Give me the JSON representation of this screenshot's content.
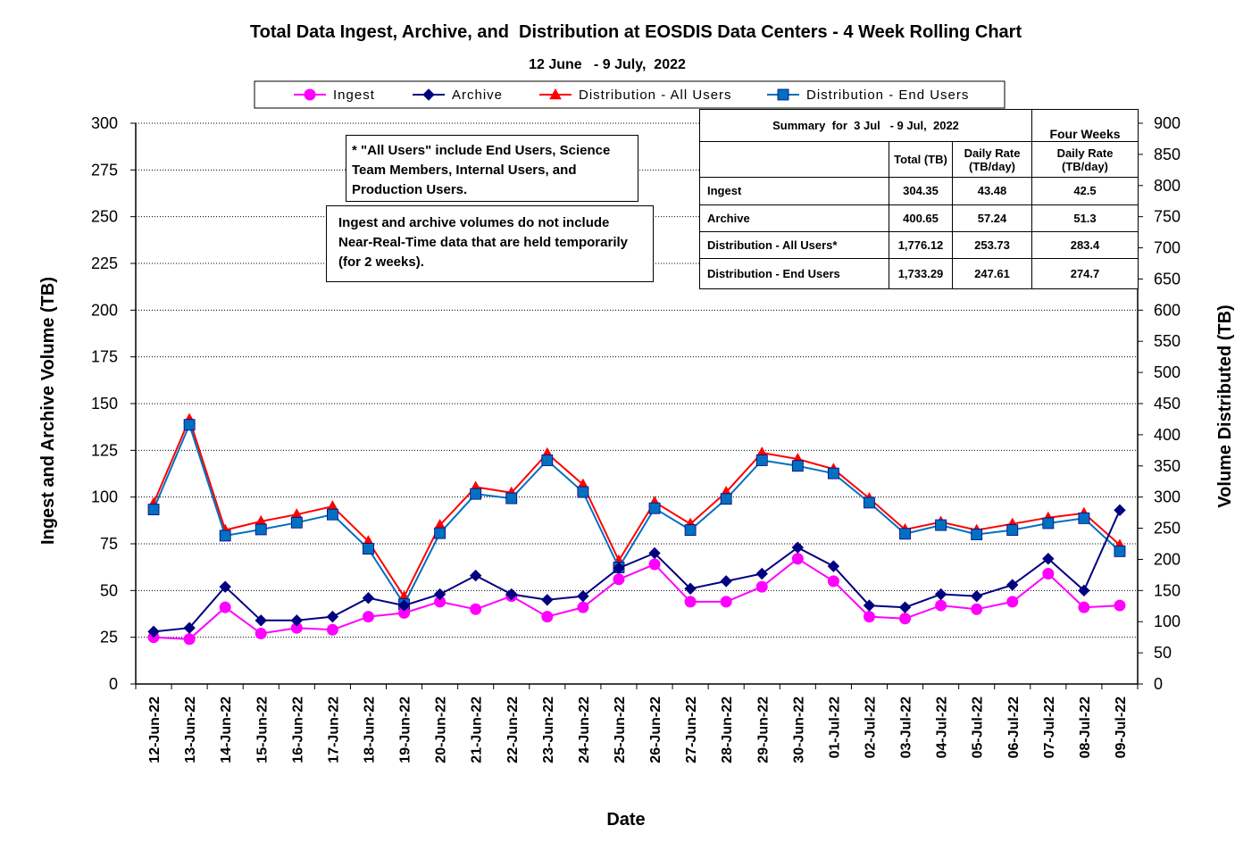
{
  "title": "Total Data Ingest, Archive, and  Distribution at EOSDIS Data Centers - 4 Week Rolling Chart",
  "subtitle": "12 June   - 9 July,  2022",
  "notes": {
    "all_users": "* \"All Users\" include End Users, Science Team Members,  Internal Users, and Production Users.",
    "nrt": "Ingest and archive volumes do not include Near-Real-Time data that are held temporarily (for 2 weeks)."
  },
  "summary_table": {
    "title": "Summary  for  3 Jul   - 9 Jul,  2022",
    "four_weeks": "Four Weeks",
    "col_total": "Total (TB)",
    "col_daily": "Daily Rate (TB/day)",
    "col_daily_4w": "Daily Rate (TB/day)",
    "rows": [
      {
        "label": "Ingest",
        "total": "304.35",
        "daily": "43.48",
        "four_week": "42.5"
      },
      {
        "label": "Archive",
        "total": "400.65",
        "daily": "57.24",
        "four_week": "51.3"
      },
      {
        "label": "Distribution - All Users*",
        "total": "1,776.12",
        "daily": "253.73",
        "four_week": "283.4"
      },
      {
        "label": "Distribution - End Users",
        "total": "1,733.29",
        "daily": "247.61",
        "four_week": "274.7"
      }
    ]
  },
  "chart_data": {
    "type": "line",
    "xlabel": "Date",
    "ylabel": "Ingest and Archive Volume (TB)",
    "y2label": "Volume Distributed (TB)",
    "ylim": [
      0,
      300
    ],
    "y2lim": [
      0,
      900
    ],
    "yticks": [
      0,
      25,
      50,
      75,
      100,
      125,
      150,
      175,
      200,
      225,
      250,
      275,
      300
    ],
    "y2ticks": [
      0,
      50,
      100,
      150,
      200,
      250,
      300,
      350,
      400,
      450,
      500,
      550,
      600,
      650,
      700,
      750,
      800,
      850,
      900
    ],
    "grid": "horizontal dotted",
    "legend_position": "top",
    "categories": [
      "12-Jun-22",
      "13-Jun-22",
      "14-Jun-22",
      "15-Jun-22",
      "16-Jun-22",
      "17-Jun-22",
      "18-Jun-22",
      "19-Jun-22",
      "20-Jun-22",
      "21-Jun-22",
      "22-Jun-22",
      "23-Jun-22",
      "24-Jun-22",
      "25-Jun-22",
      "26-Jun-22",
      "27-Jun-22",
      "28-Jun-22",
      "29-Jun-22",
      "30-Jun-22",
      "01-Jul-22",
      "02-Jul-22",
      "03-Jul-22",
      "04-Jul-22",
      "05-Jul-22",
      "06-Jul-22",
      "07-Jul-22",
      "08-Jul-22",
      "09-Jul-22"
    ],
    "series": [
      {
        "name": "Ingest",
        "axis": "left",
        "color": "#ff00ff",
        "marker": "circle",
        "values": [
          25,
          24,
          41,
          27,
          30,
          29,
          36,
          38,
          44,
          40,
          47,
          36,
          41,
          56,
          64,
          44,
          44,
          52,
          67,
          55,
          36,
          35,
          42,
          40,
          44,
          59,
          41,
          42
        ]
      },
      {
        "name": "Archive",
        "axis": "left",
        "color": "#000080",
        "marker": "diamond",
        "values": [
          28,
          30,
          52,
          34,
          34,
          36,
          46,
          42,
          48,
          58,
          48,
          45,
          47,
          62,
          70,
          51,
          55,
          59,
          73,
          63,
          42,
          41,
          48,
          47,
          53,
          67,
          50,
          93
        ]
      },
      {
        "name": "Distribution - All Users",
        "axis": "right",
        "color": "#ff0000",
        "marker": "triangle",
        "values": [
          290,
          425,
          247,
          261,
          272,
          285,
          229,
          140,
          255,
          316,
          307,
          370,
          320,
          198,
          292,
          257,
          308,
          371,
          361,
          345,
          298,
          248,
          260,
          247,
          257,
          267,
          274,
          223
        ]
      },
      {
        "name": "Distribution - End Users",
        "axis": "right",
        "color": "#0070c0",
        "marker": "square",
        "values": [
          280,
          416,
          238,
          248,
          259,
          272,
          217,
          128,
          242,
          305,
          298,
          359,
          308,
          187,
          282,
          247,
          297,
          359,
          350,
          338,
          291,
          241,
          255,
          240,
          247,
          258,
          266,
          213
        ]
      }
    ]
  }
}
